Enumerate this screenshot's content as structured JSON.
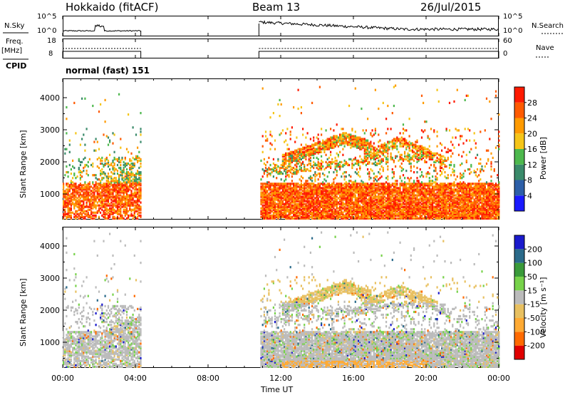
{
  "header": {
    "site": "Hokkaido (fitACF)",
    "beam": "Beam 13",
    "date": "26/Jul/2015"
  },
  "top_panels": {
    "nsky_label": "N.Sky",
    "nsky_ticks": [
      "10^5",
      "10^0"
    ],
    "nsearch_label": "N.Search",
    "nsearch_ticks": [
      "10^5",
      "10^0"
    ],
    "freq_label": "Freq.",
    "freq_unit": "[MHz]",
    "freq_ticks": [
      "18",
      "8"
    ],
    "nave_label": "Nave",
    "nave_ticks": [
      "60",
      "0"
    ],
    "cpid_label": "CPID",
    "cpid_value": "normal (fast) 151"
  },
  "colors": {
    "power": [
      "#1a1aff",
      "#2d5fa8",
      "#3a8a6a",
      "#4db84d",
      "#f5c518",
      "#ff9a00",
      "#ff5a00",
      "#ff1a00"
    ],
    "velocity": [
      "#e00000",
      "#ff6a00",
      "#ffaa33",
      "#e8c060",
      "#bbbbbb",
      "#77d24a",
      "#3a9a3a",
      "#2a6a8a",
      "#1a1acc"
    ]
  },
  "chart_data": [
    {
      "type": "heatmap",
      "name": "power",
      "ylabel": "Slant Range [km]",
      "yticks": [
        "4000",
        "3000",
        "2000",
        "1000"
      ],
      "ylim": [
        200,
        4600
      ],
      "colorbar_label": "Power [dB]",
      "colorbar_ticks": [
        "28",
        "24",
        "20",
        "16",
        "12",
        "8",
        "4"
      ],
      "colorbar_range": [
        0,
        32
      ],
      "data_gaps_ut": [
        [
          4.3,
          10.8
        ]
      ]
    },
    {
      "type": "heatmap",
      "name": "velocity",
      "ylabel": "Slant Range [km]",
      "yticks": [
        "4000",
        "3000",
        "2000",
        "1000"
      ],
      "ylim": [
        200,
        4600
      ],
      "colorbar_label": "Velocity [m s⁻¹]",
      "colorbar_ticks": [
        "200",
        "100",
        "50",
        "15",
        "-15",
        "-50",
        "-100",
        "-200"
      ],
      "data_gaps_ut": [
        [
          4.3,
          10.8
        ]
      ]
    }
  ],
  "xaxis": {
    "label": "Time UT",
    "ticks": [
      "00:00",
      "04:00",
      "08:00",
      "12:00",
      "16:00",
      "20:00",
      "00:00"
    ],
    "range_hours": [
      0,
      24
    ]
  }
}
